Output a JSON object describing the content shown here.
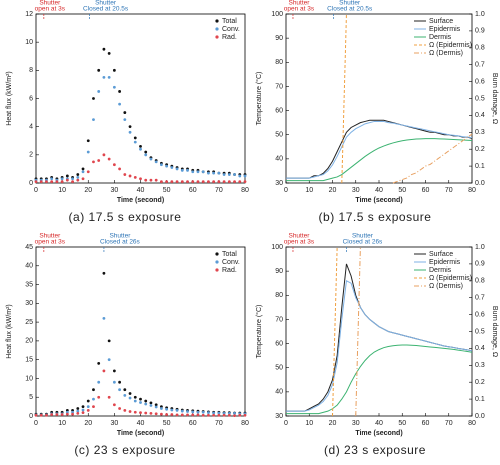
{
  "chart_data": [
    {
      "type": "scatter",
      "caption": "(a) 17.5 s exposure",
      "xlabel": "Time (second)",
      "ylabel": "Heat flux (kW/m²)",
      "xlim": [
        0,
        80
      ],
      "xticks": [
        0,
        10,
        20,
        30,
        40,
        50,
        60,
        70,
        80
      ],
      "ylim": [
        0,
        12
      ],
      "yticks": [
        0,
        2,
        4,
        6,
        8,
        10,
        12
      ],
      "legend": "upper right",
      "annotations": [
        {
          "lines": [
            "Shutter",
            "open at 3s"
          ],
          "x": 3,
          "color": "#d62728"
        },
        {
          "lines": [
            "Shutter",
            "Closed at 20.5s"
          ],
          "x": 20.5,
          "color": "#2e75b6"
        }
      ],
      "x": [
        0,
        2,
        4,
        6,
        8,
        10,
        12,
        14,
        16,
        18,
        20,
        22,
        24,
        26,
        28,
        30,
        32,
        34,
        36,
        38,
        40,
        42,
        44,
        46,
        48,
        50,
        52,
        54,
        56,
        58,
        60,
        62,
        64,
        66,
        68,
        70,
        72,
        74,
        76,
        78,
        80
      ],
      "series": [
        {
          "name": "Total",
          "color": "#111111",
          "values": [
            0.3,
            0.3,
            0.3,
            0.4,
            0.3,
            0.4,
            0.5,
            0.4,
            0.6,
            1.0,
            3.0,
            6.0,
            8.0,
            9.5,
            9.2,
            8.0,
            6.5,
            5.0,
            4.0,
            3.2,
            2.6,
            2.2,
            1.8,
            1.6,
            1.4,
            1.3,
            1.2,
            1.1,
            1.0,
            1.0,
            0.9,
            0.9,
            0.8,
            0.8,
            0.8,
            0.7,
            0.7,
            0.7,
            0.6,
            0.6,
            0.6
          ]
        },
        {
          "name": "Conv.",
          "color": "#5b9bd5",
          "values": [
            0.2,
            0.2,
            0.2,
            0.3,
            0.2,
            0.3,
            0.3,
            0.3,
            0.4,
            0.8,
            2.2,
            4.5,
            6.5,
            7.5,
            7.5,
            6.8,
            5.6,
            4.5,
            3.6,
            2.9,
            2.4,
            2.0,
            1.7,
            1.5,
            1.3,
            1.2,
            1.1,
            1.0,
            0.9,
            0.9,
            0.8,
            0.8,
            0.8,
            0.7,
            0.7,
            0.7,
            0.6,
            0.6,
            0.6,
            0.5,
            0.5
          ]
        },
        {
          "name": "Rad.",
          "color": "#e0464e",
          "values": [
            0.1,
            0.1,
            0.1,
            0.1,
            0.1,
            0.1,
            0.2,
            0.1,
            0.2,
            0.3,
            0.8,
            1.5,
            1.6,
            2.0,
            1.7,
            1.3,
            1.0,
            0.6,
            0.5,
            0.4,
            0.3,
            0.2,
            0.2,
            0.2,
            0.1,
            0.1,
            0.1,
            0.1,
            0.1,
            0.1,
            0.1,
            0.1,
            0.1,
            0.1,
            0.1,
            0.1,
            0.1,
            0.1,
            0.1,
            0.1,
            0.1
          ]
        }
      ]
    },
    {
      "type": "line",
      "caption": "(b) 17.5 s exposure",
      "xlabel": "Time (second)",
      "ylabel": "Temperature (°C)",
      "y2label": "Burn damage, Ω",
      "xlim": [
        0,
        80
      ],
      "xticks": [
        0,
        10,
        20,
        30,
        40,
        50,
        60,
        70,
        80
      ],
      "ylim": [
        30,
        100
      ],
      "yticks": [
        30,
        40,
        50,
        60,
        70,
        80,
        90,
        100
      ],
      "y2lim": [
        0,
        1
      ],
      "y2ticks": [
        {
          "value": 0,
          "label": "0.0"
        },
        0.1,
        0.2,
        0.3,
        0.4,
        0.5,
        0.6,
        0.7,
        0.8,
        0.9,
        {
          "value": 1,
          "label": "1.0"
        }
      ],
      "legend": "upper right",
      "annotations": [
        {
          "lines": [
            "Shutter",
            "open at 3s"
          ],
          "x": 3,
          "color": "#d62728"
        },
        {
          "lines": [
            "Shutter",
            "Closed at 20.5s"
          ],
          "x": 20.5,
          "color": "#2e75b6"
        }
      ],
      "x": [
        0,
        2,
        4,
        6,
        8,
        10,
        12,
        14,
        16,
        18,
        20,
        22,
        24,
        26,
        28,
        30,
        32,
        34,
        36,
        38,
        40,
        42,
        44,
        46,
        48,
        50,
        52,
        54,
        56,
        58,
        60,
        62,
        64,
        66,
        68,
        70,
        72,
        74,
        76,
        78,
        80
      ],
      "series": [
        {
          "name": "Surface",
          "color": "#222222",
          "style": "solid",
          "values": [
            32,
            32,
            32,
            32,
            32,
            32,
            33,
            33,
            34,
            36,
            39,
            43,
            47,
            51,
            53,
            54,
            55,
            55.5,
            56,
            56,
            56,
            56,
            55.5,
            55,
            54.5,
            54,
            53.5,
            53,
            52.5,
            52,
            51.5,
            51,
            51,
            50.5,
            50,
            50,
            49.5,
            49.5,
            49,
            49,
            48.5
          ]
        },
        {
          "name": "Epidermis",
          "color": "#7fb2e5",
          "style": "solid",
          "values": [
            32,
            32,
            32,
            32,
            32,
            32,
            32.5,
            33,
            33.5,
            35,
            37.5,
            41,
            45,
            49,
            51,
            52.5,
            53.5,
            54.5,
            55,
            55.5,
            55.5,
            55.5,
            55,
            54.8,
            54.4,
            54,
            53.6,
            53.2,
            52.8,
            52.4,
            52,
            51.6,
            51.2,
            50.8,
            50.4,
            50,
            49.8,
            49.5,
            49.2,
            49,
            48.8
          ]
        },
        {
          "name": "Dermis",
          "color": "#3cb371",
          "style": "solid",
          "values": [
            31,
            31,
            31,
            31,
            31,
            31,
            31,
            31,
            31,
            31.5,
            32,
            32.5,
            33.5,
            35,
            36.5,
            38,
            39.5,
            41,
            42.3,
            43.5,
            44.5,
            45.3,
            46,
            46.6,
            47.1,
            47.5,
            47.8,
            48,
            48.2,
            48.3,
            48.4,
            48.4,
            48.4,
            48.3,
            48.2,
            48.1,
            48,
            47.9,
            47.8,
            47.7,
            47.6
          ]
        },
        {
          "name": "Ω (Epidermis)",
          "color": "#f0a040",
          "style": "dashed",
          "axis": "y2",
          "values": [
            null,
            null,
            null,
            null,
            null,
            null,
            null,
            null,
            null,
            null,
            null,
            null,
            0,
            1.0,
            null,
            null,
            null,
            null,
            null,
            null,
            null,
            null,
            null,
            null,
            null,
            null,
            null,
            null,
            null,
            null,
            null,
            null,
            null,
            null,
            null,
            null,
            null,
            null,
            null,
            null,
            null
          ]
        },
        {
          "name": "Ω (Dermis)",
          "color": "#e8a060",
          "style": "dashdot",
          "axis": "y2",
          "values": [
            null,
            null,
            null,
            null,
            null,
            null,
            null,
            null,
            null,
            null,
            null,
            null,
            null,
            null,
            null,
            null,
            null,
            null,
            null,
            null,
            null,
            null,
            null,
            0,
            0.01,
            0.02,
            0.03,
            0.05,
            0.06,
            0.08,
            0.1,
            0.11,
            0.13,
            0.15,
            0.17,
            0.19,
            0.21,
            0.23,
            0.25,
            0.27,
            0.29
          ]
        }
      ]
    },
    {
      "type": "scatter",
      "caption": "(c) 23 s exposure",
      "xlabel": "Time (second)",
      "ylabel": "Heat flux (kW/m²)",
      "xlim": [
        0,
        80
      ],
      "xticks": [
        0,
        10,
        20,
        30,
        40,
        50,
        60,
        70,
        80
      ],
      "ylim": [
        0,
        45
      ],
      "yticks": [
        0,
        5,
        10,
        15,
        20,
        25,
        30,
        35,
        40,
        45
      ],
      "legend": "upper right",
      "annotations": [
        {
          "lines": [
            "Shutter",
            "open at 3s"
          ],
          "x": 3,
          "color": "#d62728"
        },
        {
          "lines": [
            "Shutter",
            "Closed at 26s"
          ],
          "x": 26,
          "color": "#2e75b6"
        }
      ],
      "x": [
        0,
        2,
        4,
        6,
        8,
        10,
        12,
        14,
        16,
        18,
        20,
        22,
        24,
        26,
        28,
        30,
        32,
        34,
        36,
        38,
        40,
        42,
        44,
        46,
        48,
        50,
        52,
        54,
        56,
        58,
        60,
        62,
        64,
        66,
        68,
        70,
        72,
        74,
        76,
        78,
        80
      ],
      "series": [
        {
          "name": "Total",
          "color": "#111111",
          "values": [
            0.5,
            0.5,
            0.5,
            1,
            1,
            1,
            1.5,
            1.5,
            2,
            2.5,
            4,
            7,
            14,
            38,
            20,
            12,
            9,
            7,
            6,
            5,
            4.5,
            4,
            3.5,
            3,
            2.5,
            2.2,
            2,
            1.8,
            1.6,
            1.5,
            1.4,
            1.3,
            1.2,
            1.1,
            1,
            1,
            0.9,
            0.9,
            0.8,
            0.8,
            0.8
          ]
        },
        {
          "name": "Conv.",
          "color": "#5b9bd5",
          "values": [
            0.3,
            0.3,
            0.3,
            0.6,
            0.6,
            0.6,
            1,
            1,
            1.3,
            1.6,
            2.5,
            4.5,
            9,
            26,
            15,
            9,
            7,
            5.5,
            4.8,
            4,
            3.6,
            3.2,
            2.8,
            2.4,
            2,
            1.8,
            1.6,
            1.5,
            1.3,
            1.2,
            1.1,
            1,
            1,
            0.9,
            0.8,
            0.8,
            0.7,
            0.7,
            0.7,
            0.6,
            0.6
          ]
        },
        {
          "name": "Rad.",
          "color": "#e0464e",
          "values": [
            0.2,
            0.2,
            0.2,
            0.4,
            0.4,
            0.4,
            0.5,
            0.5,
            0.7,
            0.9,
            1.5,
            2.5,
            5,
            12,
            5,
            3,
            2,
            1.5,
            1.2,
            1,
            0.9,
            0.8,
            0.7,
            0.6,
            0.5,
            0.4,
            0.4,
            0.3,
            0.3,
            0.3,
            0.3,
            0.3,
            0.2,
            0.2,
            0.2,
            0.2,
            0.2,
            0.2,
            0.1,
            0.2,
            0.2
          ]
        }
      ]
    },
    {
      "type": "line",
      "caption": "(d) 23 s exposure",
      "xlabel": "Time (second)",
      "ylabel": "Temperature (°C)",
      "y2label": "Burn damage, Ω",
      "xlim": [
        0,
        80
      ],
      "xticks": [
        0,
        10,
        20,
        30,
        40,
        50,
        60,
        70,
        80
      ],
      "ylim": [
        30,
        100
      ],
      "yticks": [
        30,
        40,
        50,
        60,
        70,
        80,
        90,
        100
      ],
      "y2lim": [
        0,
        1
      ],
      "y2ticks": [
        {
          "value": 0,
          "label": "0.0"
        },
        0.1,
        0.2,
        0.3,
        0.4,
        0.5,
        0.6,
        0.7,
        0.8,
        0.9,
        {
          "value": 1,
          "label": "1.0"
        }
      ],
      "legend": "upper right",
      "annotations": [
        {
          "lines": [
            "Shutter",
            "open at 3s"
          ],
          "x": 3,
          "color": "#d62728"
        },
        {
          "lines": [
            "Shutter",
            "Closed at 26s"
          ],
          "x": 26,
          "color": "#2e75b6"
        }
      ],
      "x": [
        0,
        2,
        4,
        6,
        8,
        10,
        12,
        14,
        16,
        18,
        20,
        22,
        24,
        26,
        28,
        30,
        32,
        34,
        36,
        38,
        40,
        42,
        44,
        46,
        48,
        50,
        52,
        54,
        56,
        58,
        60,
        62,
        64,
        66,
        68,
        70,
        72,
        74,
        76,
        78,
        80
      ],
      "series": [
        {
          "name": "Surface",
          "color": "#222222",
          "style": "solid",
          "values": [
            32,
            32,
            32,
            32,
            32,
            33,
            34,
            35,
            37,
            40,
            45,
            55,
            75,
            93,
            88,
            80,
            75,
            72,
            70,
            68.5,
            67,
            66,
            65,
            64.5,
            64,
            63.5,
            63,
            62.5,
            62,
            61.5,
            61,
            60.5,
            60,
            59.5,
            59,
            58.7,
            58.4,
            58,
            57.7,
            57.4,
            57
          ]
        },
        {
          "name": "Epidermis",
          "color": "#7fb2e5",
          "style": "solid",
          "values": [
            32,
            32,
            32,
            32,
            32,
            32.5,
            33.5,
            34.5,
            36,
            38.5,
            43,
            52,
            70,
            86,
            85,
            79,
            75,
            72,
            70,
            68.5,
            67,
            66,
            65,
            64.5,
            64,
            63.5,
            63,
            62.5,
            62,
            61.5,
            61,
            60.5,
            60,
            59.5,
            59,
            58.7,
            58.4,
            58,
            57.7,
            57.4,
            57
          ]
        },
        {
          "name": "Dermis",
          "color": "#3cb371",
          "style": "solid",
          "values": [
            31,
            31,
            31,
            31,
            31,
            31,
            31,
            31,
            31.5,
            32,
            33,
            34.5,
            37,
            40,
            44,
            47.5,
            50.5,
            53,
            55,
            56.5,
            57.5,
            58.3,
            58.8,
            59.1,
            59.3,
            59.4,
            59.4,
            59.3,
            59.2,
            59,
            58.8,
            58.6,
            58.4,
            58.2,
            58,
            57.8,
            57.6,
            57.3,
            57,
            56.7,
            56.4
          ]
        },
        {
          "name": "Ω (Epidermis)",
          "color": "#f0a040",
          "style": "dashed",
          "axis": "y2",
          "values": [
            null,
            null,
            null,
            null,
            null,
            null,
            null,
            null,
            null,
            null,
            0,
            1.0,
            null,
            null,
            null,
            null,
            null,
            null,
            null,
            null,
            null,
            null,
            null,
            null,
            null,
            null,
            null,
            null,
            null,
            null,
            null,
            null,
            null,
            null,
            null,
            null,
            null,
            null,
            null,
            null,
            null
          ]
        },
        {
          "name": "Ω (Dermis)",
          "color": "#e8a060",
          "style": "dashdot",
          "axis": "y2",
          "values": [
            null,
            null,
            null,
            null,
            null,
            null,
            null,
            null,
            null,
            null,
            null,
            null,
            null,
            null,
            null,
            0,
            1.0,
            null,
            null,
            null,
            null,
            null,
            null,
            null,
            null,
            null,
            null,
            null,
            null,
            null,
            null,
            null,
            null,
            null,
            null,
            null,
            null,
            null,
            null,
            null,
            null
          ]
        }
      ]
    }
  ]
}
